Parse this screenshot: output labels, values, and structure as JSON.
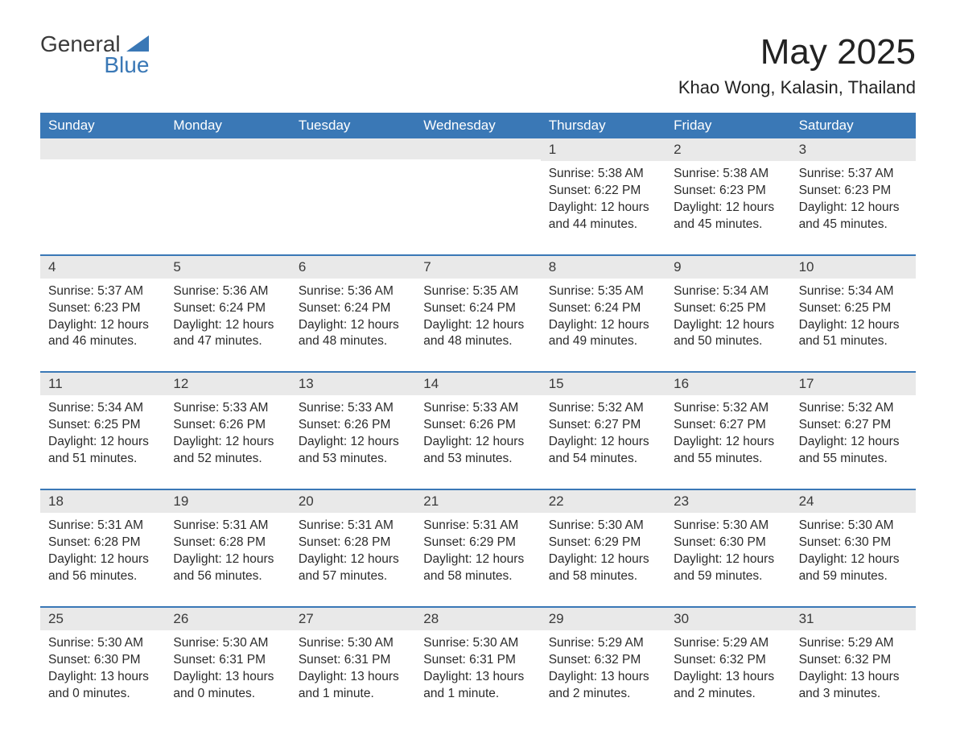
{
  "logo": {
    "word1": "General",
    "word2": "Blue"
  },
  "title": "May 2025",
  "location": "Khao Wong, Kalasin, Thailand",
  "colors": {
    "header_bg": "#3a78b6",
    "header_text": "#ffffff",
    "daynum_bg": "#e9e9e9",
    "week_border": "#3a78b6",
    "body_text": "#2b2b2b",
    "page_bg": "#ffffff"
  },
  "typography": {
    "title_fontsize": 44,
    "location_fontsize": 22,
    "header_fontsize": 17,
    "cell_fontsize": 15.5
  },
  "day_names": [
    "Sunday",
    "Monday",
    "Tuesday",
    "Wednesday",
    "Thursday",
    "Friday",
    "Saturday"
  ],
  "weeks": [
    [
      {
        "day": "",
        "sunrise": "",
        "sunset": "",
        "daylight": ""
      },
      {
        "day": "",
        "sunrise": "",
        "sunset": "",
        "daylight": ""
      },
      {
        "day": "",
        "sunrise": "",
        "sunset": "",
        "daylight": ""
      },
      {
        "day": "",
        "sunrise": "",
        "sunset": "",
        "daylight": ""
      },
      {
        "day": "1",
        "sunrise": "Sunrise: 5:38 AM",
        "sunset": "Sunset: 6:22 PM",
        "daylight": "Daylight: 12 hours and 44 minutes."
      },
      {
        "day": "2",
        "sunrise": "Sunrise: 5:38 AM",
        "sunset": "Sunset: 6:23 PM",
        "daylight": "Daylight: 12 hours and 45 minutes."
      },
      {
        "day": "3",
        "sunrise": "Sunrise: 5:37 AM",
        "sunset": "Sunset: 6:23 PM",
        "daylight": "Daylight: 12 hours and 45 minutes."
      }
    ],
    [
      {
        "day": "4",
        "sunrise": "Sunrise: 5:37 AM",
        "sunset": "Sunset: 6:23 PM",
        "daylight": "Daylight: 12 hours and 46 minutes."
      },
      {
        "day": "5",
        "sunrise": "Sunrise: 5:36 AM",
        "sunset": "Sunset: 6:24 PM",
        "daylight": "Daylight: 12 hours and 47 minutes."
      },
      {
        "day": "6",
        "sunrise": "Sunrise: 5:36 AM",
        "sunset": "Sunset: 6:24 PM",
        "daylight": "Daylight: 12 hours and 48 minutes."
      },
      {
        "day": "7",
        "sunrise": "Sunrise: 5:35 AM",
        "sunset": "Sunset: 6:24 PM",
        "daylight": "Daylight: 12 hours and 48 minutes."
      },
      {
        "day": "8",
        "sunrise": "Sunrise: 5:35 AM",
        "sunset": "Sunset: 6:24 PM",
        "daylight": "Daylight: 12 hours and 49 minutes."
      },
      {
        "day": "9",
        "sunrise": "Sunrise: 5:34 AM",
        "sunset": "Sunset: 6:25 PM",
        "daylight": "Daylight: 12 hours and 50 minutes."
      },
      {
        "day": "10",
        "sunrise": "Sunrise: 5:34 AM",
        "sunset": "Sunset: 6:25 PM",
        "daylight": "Daylight: 12 hours and 51 minutes."
      }
    ],
    [
      {
        "day": "11",
        "sunrise": "Sunrise: 5:34 AM",
        "sunset": "Sunset: 6:25 PM",
        "daylight": "Daylight: 12 hours and 51 minutes."
      },
      {
        "day": "12",
        "sunrise": "Sunrise: 5:33 AM",
        "sunset": "Sunset: 6:26 PM",
        "daylight": "Daylight: 12 hours and 52 minutes."
      },
      {
        "day": "13",
        "sunrise": "Sunrise: 5:33 AM",
        "sunset": "Sunset: 6:26 PM",
        "daylight": "Daylight: 12 hours and 53 minutes."
      },
      {
        "day": "14",
        "sunrise": "Sunrise: 5:33 AM",
        "sunset": "Sunset: 6:26 PM",
        "daylight": "Daylight: 12 hours and 53 minutes."
      },
      {
        "day": "15",
        "sunrise": "Sunrise: 5:32 AM",
        "sunset": "Sunset: 6:27 PM",
        "daylight": "Daylight: 12 hours and 54 minutes."
      },
      {
        "day": "16",
        "sunrise": "Sunrise: 5:32 AM",
        "sunset": "Sunset: 6:27 PM",
        "daylight": "Daylight: 12 hours and 55 minutes."
      },
      {
        "day": "17",
        "sunrise": "Sunrise: 5:32 AM",
        "sunset": "Sunset: 6:27 PM",
        "daylight": "Daylight: 12 hours and 55 minutes."
      }
    ],
    [
      {
        "day": "18",
        "sunrise": "Sunrise: 5:31 AM",
        "sunset": "Sunset: 6:28 PM",
        "daylight": "Daylight: 12 hours and 56 minutes."
      },
      {
        "day": "19",
        "sunrise": "Sunrise: 5:31 AM",
        "sunset": "Sunset: 6:28 PM",
        "daylight": "Daylight: 12 hours and 56 minutes."
      },
      {
        "day": "20",
        "sunrise": "Sunrise: 5:31 AM",
        "sunset": "Sunset: 6:28 PM",
        "daylight": "Daylight: 12 hours and 57 minutes."
      },
      {
        "day": "21",
        "sunrise": "Sunrise: 5:31 AM",
        "sunset": "Sunset: 6:29 PM",
        "daylight": "Daylight: 12 hours and 58 minutes."
      },
      {
        "day": "22",
        "sunrise": "Sunrise: 5:30 AM",
        "sunset": "Sunset: 6:29 PM",
        "daylight": "Daylight: 12 hours and 58 minutes."
      },
      {
        "day": "23",
        "sunrise": "Sunrise: 5:30 AM",
        "sunset": "Sunset: 6:30 PM",
        "daylight": "Daylight: 12 hours and 59 minutes."
      },
      {
        "day": "24",
        "sunrise": "Sunrise: 5:30 AM",
        "sunset": "Sunset: 6:30 PM",
        "daylight": "Daylight: 12 hours and 59 minutes."
      }
    ],
    [
      {
        "day": "25",
        "sunrise": "Sunrise: 5:30 AM",
        "sunset": "Sunset: 6:30 PM",
        "daylight": "Daylight: 13 hours and 0 minutes."
      },
      {
        "day": "26",
        "sunrise": "Sunrise: 5:30 AM",
        "sunset": "Sunset: 6:31 PM",
        "daylight": "Daylight: 13 hours and 0 minutes."
      },
      {
        "day": "27",
        "sunrise": "Sunrise: 5:30 AM",
        "sunset": "Sunset: 6:31 PM",
        "daylight": "Daylight: 13 hours and 1 minute."
      },
      {
        "day": "28",
        "sunrise": "Sunrise: 5:30 AM",
        "sunset": "Sunset: 6:31 PM",
        "daylight": "Daylight: 13 hours and 1 minute."
      },
      {
        "day": "29",
        "sunrise": "Sunrise: 5:29 AM",
        "sunset": "Sunset: 6:32 PM",
        "daylight": "Daylight: 13 hours and 2 minutes."
      },
      {
        "day": "30",
        "sunrise": "Sunrise: 5:29 AM",
        "sunset": "Sunset: 6:32 PM",
        "daylight": "Daylight: 13 hours and 2 minutes."
      },
      {
        "day": "31",
        "sunrise": "Sunrise: 5:29 AM",
        "sunset": "Sunset: 6:32 PM",
        "daylight": "Daylight: 13 hours and 3 minutes."
      }
    ]
  ]
}
